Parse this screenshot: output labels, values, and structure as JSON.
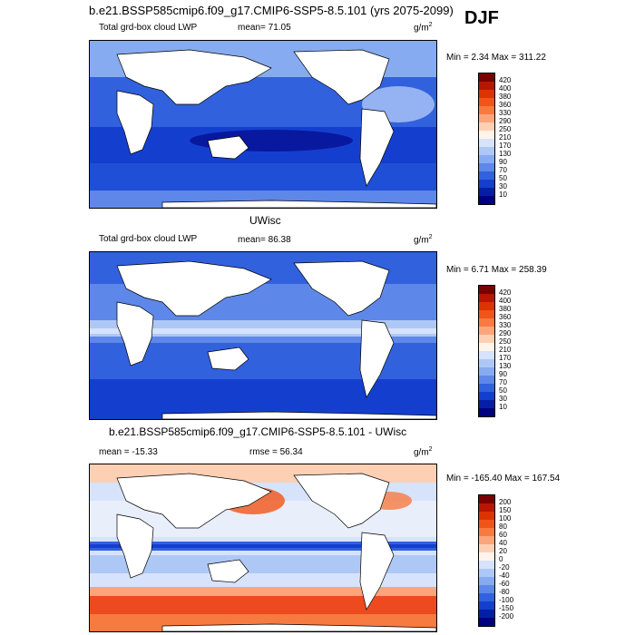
{
  "season": "DJF",
  "unit": "g/m",
  "unit_sup": "2",
  "panels": [
    {
      "title": "b.e21.BSSP585cmip6.f09_g17.CMIP6-SSP5-8.5.101 (yrs 2075-2099)",
      "variable": "Total grd-box cloud LWP",
      "stat_label": "mean=",
      "stat_value": "71.05",
      "minmax_text": "Min =   2.34 Max = 311.22",
      "colorbar_labels": [
        "420",
        "400",
        "380",
        "360",
        "330",
        "290",
        "250",
        "210",
        "170",
        "130",
        "90",
        "70",
        "50",
        "30",
        "10"
      ],
      "colorbar_colors": [
        "#7a0000",
        "#b81600",
        "#dd3300",
        "#f05418",
        "#f77a40",
        "#fca57c",
        "#fdd0b4",
        "#fff4ea",
        "#d6e3fb",
        "#aec8f6",
        "#87abf0",
        "#5d87e9",
        "#3261de",
        "#143fce",
        "#061ea5",
        "#000080"
      ]
    },
    {
      "title": "UWisc",
      "variable": "Total grd-box cloud LWP",
      "stat_label": "mean=",
      "stat_value": "86.38",
      "minmax_text": "Min =   6.71 Max = 258.39",
      "colorbar_labels": [
        "420",
        "400",
        "380",
        "360",
        "330",
        "290",
        "250",
        "210",
        "170",
        "130",
        "90",
        "70",
        "50",
        "30",
        "10"
      ],
      "colorbar_colors": [
        "#7a0000",
        "#b81600",
        "#dd3300",
        "#f05418",
        "#f77a40",
        "#fca57c",
        "#fdd0b4",
        "#fff4ea",
        "#d6e3fb",
        "#aec8f6",
        "#87abf0",
        "#5d87e9",
        "#3261de",
        "#143fce",
        "#061ea5",
        "#000080"
      ]
    },
    {
      "title": "b.e21.BSSP585cmip6.f09_g17.CMIP6-SSP5-8.5.101 - UWisc",
      "mean_text": "mean = -15.33",
      "rmse_text": "rmse =  56.34",
      "minmax_text": "Min = -165.40 Max = 167.54",
      "colorbar_labels": [
        "200",
        "150",
        "100",
        "80",
        "60",
        "40",
        "20",
        "0",
        "-20",
        "-40",
        "-60",
        "-80",
        "-100",
        "-150",
        "-200"
      ],
      "colorbar_colors": [
        "#7a0000",
        "#b81600",
        "#dd3300",
        "#f05418",
        "#f77a40",
        "#fca57c",
        "#fdd0b4",
        "#fff4ea",
        "#d6e3fb",
        "#aec8f6",
        "#87abf0",
        "#5d87e9",
        "#3261de",
        "#143fce",
        "#061ea5",
        "#000080"
      ]
    }
  ],
  "map_style": {
    "ocean_fill_1": "#1f4fd6",
    "ocean_fill_2": "#4a7ff0",
    "land": "#ffffff",
    "diff_warm": "#ee4a20",
    "diff_cool": "#3d6ae4"
  }
}
